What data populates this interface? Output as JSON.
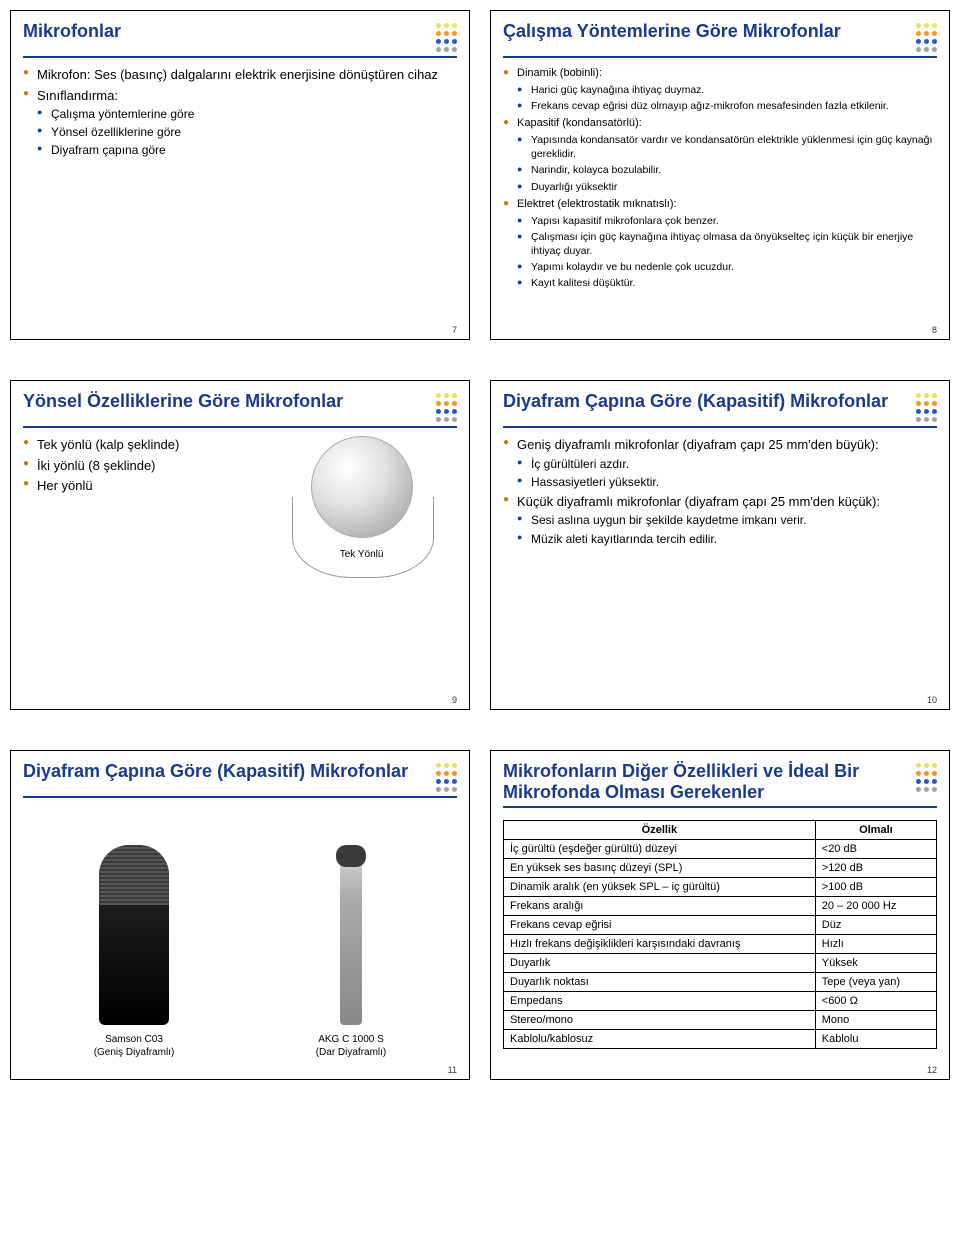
{
  "colors": {
    "title": "#1a3a8a",
    "rule": "#1a3a8a",
    "bullet_l1": "#c07818",
    "bullet_l2": "#1a3a8a",
    "dot_palette": [
      "#e8e060",
      "#e8e060",
      "#e8e060",
      "#e89830",
      "#e89830",
      "#e89830",
      "#2858b8",
      "#2858b8",
      "#2858b8",
      "#a0a0a0",
      "#a0a0a0",
      "#a0a0a0"
    ]
  },
  "fonts": {
    "title_size_pt": 18,
    "body_size_pt": 13,
    "sub_size_pt": 12,
    "pagenum_size_pt": 9
  },
  "s7": {
    "title": "Mikrofonlar",
    "items": [
      "Mikrofon: Ses (basınç) dalgalarını elektrik enerjisine dönüştüren cihaz",
      "Sınıflandırma:"
    ],
    "sub": [
      "Çalışma yöntemlerine göre",
      "Yönsel özelliklerine göre",
      "Diyafram çapına göre"
    ],
    "page": "7"
  },
  "s8": {
    "title": "Çalışma Yöntemlerine Göre Mikrofonlar",
    "g1": {
      "head": "Dinamik (bobinli):",
      "items": [
        "Harici güç kaynağına ihtiyaç duymaz.",
        "Frekans cevap eğrisi düz olmayıp ağız-mikrofon mesafesinden fazla etkilenir."
      ]
    },
    "g2": {
      "head": "Kapasitif (kondansatörlü):",
      "items": [
        "Yapısında kondansatör vardır ve kondansatörün elektrikle yüklenmesi için güç kaynağı gereklidir.",
        "Narindir, kolayca bozulabilir.",
        "Duyarlığı yüksektir"
      ]
    },
    "g3": {
      "head": "Elektret (elektrostatik mıknatıslı):",
      "items": [
        "Yapısı kapasitif mikrofonlara çok benzer.",
        "Çalışması için güç kaynağına ihtiyaç olmasa da önyükselteç için küçük bir enerjiye ihtiyaç duyar.",
        "Yapımı kolaydır ve bu nedenle çok ucuzdur.",
        "Kayıt kalitesi düşüktür."
      ]
    },
    "page": "8"
  },
  "s9": {
    "title": "Yönsel Özelliklerine Göre Mikrofonlar",
    "items": [
      "Tek yönlü (kalp şeklinde)",
      "İki yönlü (8 şeklinde)",
      "Her yönlü"
    ],
    "caption": "Tek Yönlü",
    "page": "9"
  },
  "s10": {
    "title": "Diyafram Çapına Göre (Kapasitif) Mikrofonlar",
    "g1": {
      "head": "Geniş diyaframlı mikrofonlar (diyafram çapı 25 mm'den büyük):",
      "items": [
        "İç gürültüleri azdır.",
        "Hassasiyetleri yüksektir."
      ]
    },
    "g2": {
      "head": "Küçük diyaframlı mikrofonlar (diyafram çapı 25 mm'den küçük):",
      "items": [
        "Sesi aslına uygun bir şekilde kaydetme imkanı verir.",
        "Müzik aleti kayıtlarında tercih edilir."
      ]
    },
    "page": "10"
  },
  "s11": {
    "title": "Diyafram Çapına Göre (Kapasitif) Mikrofonlar",
    "left": {
      "name": "Samson C03",
      "sub": "(Geniş Diyaframlı)"
    },
    "right": {
      "name": "AKG C 1000 S",
      "sub": "(Dar Diyaframlı)"
    },
    "page": "11"
  },
  "s12": {
    "title": "Mikrofonların Diğer Özellikleri ve İdeal Bir Mikrofonda Olması Gerekenler",
    "table": {
      "headers": [
        "Özellik",
        "Olmalı"
      ],
      "rows": [
        [
          "İç gürültü (eşdeğer gürültü) düzeyi",
          "<20 dB"
        ],
        [
          "En yüksek ses basınç düzeyi (SPL)",
          ">120 dB"
        ],
        [
          "Dinamik aralık (en yüksek SPL – iç gürültü)",
          ">100 dB"
        ],
        [
          "Frekans aralığı",
          "20 – 20 000 Hz"
        ],
        [
          "Frekans cevap eğrisi",
          "Düz"
        ],
        [
          "Hızlı frekans değişiklikleri karşısındaki davranış",
          "Hızlı"
        ],
        [
          "Duyarlık",
          "Yüksek"
        ],
        [
          "Duyarlık noktası",
          "Tepe (veya yan)"
        ],
        [
          "Empedans",
          "<600 Ω"
        ],
        [
          "Stereo/mono",
          "Mono"
        ],
        [
          "Kablolu/kablosuz",
          "Kablolu"
        ]
      ]
    },
    "page": "12"
  }
}
